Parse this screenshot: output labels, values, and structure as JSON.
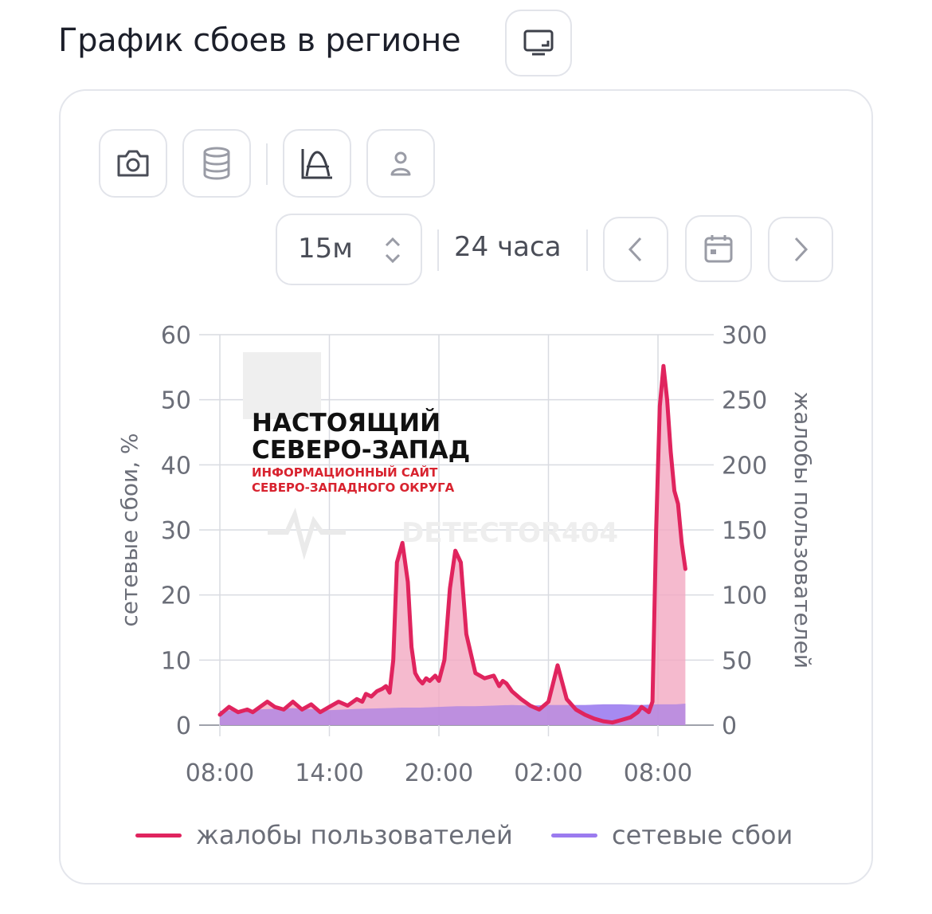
{
  "header": {
    "title": "График сбоев в регионе",
    "fullscreen_icon": "screen-icon"
  },
  "toolbar": {
    "buttons": [
      {
        "icon": "camera-icon"
      },
      {
        "icon": "database-icon"
      },
      {
        "icon": "chart-curve-icon"
      },
      {
        "icon": "user-icon"
      }
    ]
  },
  "controls": {
    "interval": {
      "value": "15м",
      "options": [
        "15м"
      ]
    },
    "period": "24 часа",
    "prev_icon": "chevron-left-icon",
    "calendar_icon": "calendar-icon",
    "next_icon": "chevron-right-icon"
  },
  "watermark": {
    "line1": "НАСТОЯЩИЙ",
    "line2": "СЕВЕРО-ЗАПАД",
    "line3": "ИНФОРМАЦИОННЫЙ САЙТ",
    "line4": "СЕВЕРО-ЗАПАДНОГО ОКРУГА",
    "brand": "DETECTOR404"
  },
  "colors": {
    "complaints": "#e0245e",
    "complaints_fill": "#f3a9c2",
    "failures": "#9b7bef",
    "grid": "#d9dbe1"
  },
  "chart_data": {
    "type": "area",
    "x_ticks": [
      "08:00",
      "14:00",
      "20:00",
      "02:00",
      "08:00"
    ],
    "x_range_hours": [
      0,
      25.5
    ],
    "y_left": {
      "label": "сетевые сбои, %",
      "ticks": [
        0,
        10,
        20,
        30,
        40,
        50,
        60
      ],
      "range": [
        0,
        60
      ]
    },
    "y_right": {
      "label": "жалобы пользователей",
      "ticks": [
        0,
        50,
        100,
        150,
        200,
        250,
        300
      ],
      "range": [
        0,
        300
      ]
    },
    "grid": true,
    "legend_position": "bottom",
    "series": [
      {
        "name": "жалобы пользователей",
        "axis": "right",
        "x": [
          0,
          0.5,
          1,
          1.5,
          1.8,
          2.2,
          2.6,
          3,
          3.5,
          4,
          4.5,
          5,
          5.5,
          6,
          6.5,
          7,
          7.5,
          7.8,
          8,
          8.3,
          8.6,
          8.9,
          9.1,
          9.3,
          9.5,
          9.7,
          10,
          10.3,
          10.5,
          10.7,
          10.9,
          11.1,
          11.3,
          11.5,
          11.8,
          12,
          12.3,
          12.6,
          12.9,
          13.2,
          13.5,
          14,
          14.5,
          15,
          15.3,
          15.5,
          15.7,
          16,
          16.5,
          17,
          17.5,
          18,
          18.5,
          19,
          19.5,
          20,
          20.5,
          21,
          21.5,
          22,
          22.5,
          22.9,
          23.1,
          23.3,
          23.5,
          23.7,
          23.9,
          24.1,
          24.3,
          24.5,
          24.7,
          24.9,
          25.1,
          25.3,
          25.5
        ],
        "y": [
          8,
          14,
          10,
          12,
          10,
          14,
          18,
          14,
          12,
          18,
          12,
          16,
          10,
          14,
          18,
          15,
          20,
          18,
          24,
          22,
          26,
          28,
          30,
          25,
          50,
          125,
          140,
          110,
          60,
          40,
          35,
          32,
          36,
          34,
          38,
          34,
          50,
          105,
          134,
          125,
          70,
          40,
          36,
          38,
          30,
          34,
          32,
          26,
          20,
          15,
          12,
          18,
          46,
          20,
          12,
          8,
          5,
          3,
          2,
          4,
          6,
          10,
          14,
          12,
          10,
          18,
          150,
          245,
          276,
          250,
          210,
          180,
          170,
          140,
          120
        ]
      },
      {
        "name": "сетевые сбои",
        "axis": "left",
        "x": [
          0,
          2,
          4,
          6,
          7.5,
          9,
          10,
          11,
          12,
          13,
          14,
          15,
          16,
          17,
          18,
          19,
          20,
          21,
          22,
          23,
          24,
          25,
          25.5
        ],
        "y": [
          2.2,
          2.4,
          2.6,
          2.3,
          2.5,
          2.6,
          2.7,
          2.7,
          2.8,
          2.9,
          2.9,
          3.0,
          3.1,
          3.0,
          3.1,
          3.1,
          3.1,
          3.2,
          3.2,
          3.1,
          3.2,
          3.2,
          3.3
        ]
      }
    ]
  }
}
